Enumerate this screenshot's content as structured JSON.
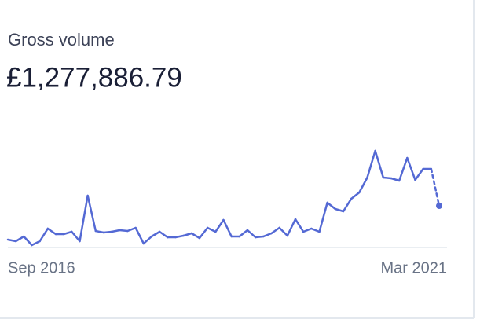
{
  "chart_data": {
    "type": "line",
    "title": "Gross volume",
    "subtitle": "£1,277,886.79",
    "categories": [
      "Sep 2016",
      null,
      null,
      null,
      null,
      null,
      null,
      null,
      null,
      null,
      null,
      null,
      null,
      null,
      null,
      null,
      null,
      null,
      null,
      null,
      null,
      null,
      null,
      null,
      null,
      null,
      null,
      null,
      null,
      null,
      null,
      null,
      null,
      null,
      null,
      null,
      null,
      null,
      null,
      null,
      null,
      null,
      null,
      null,
      null,
      null,
      null,
      null,
      null,
      null,
      null,
      null,
      null,
      null,
      "Mar 2021"
    ],
    "values": [
      10,
      8,
      14,
      3,
      8,
      24,
      17,
      17,
      20,
      8,
      66,
      21,
      19,
      20,
      22,
      21,
      25,
      5,
      14,
      20,
      13,
      13,
      15,
      18,
      12,
      25,
      20,
      35,
      14,
      14,
      22,
      13,
      14,
      18,
      25,
      15,
      36,
      20,
      24,
      20,
      57,
      49,
      46,
      62,
      70,
      89,
      123,
      89,
      88,
      85,
      114,
      86,
      100,
      100,
      53
    ],
    "color": "#5469d4",
    "ylim": [
      0,
      130
    ],
    "dashed_last_segment": true
  }
}
